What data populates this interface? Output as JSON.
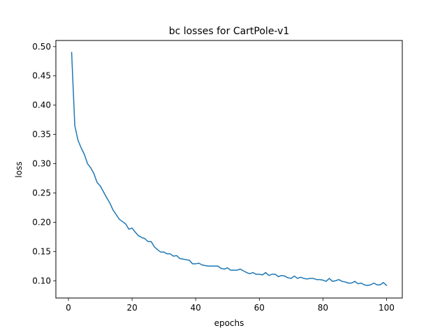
{
  "chart_data": {
    "type": "line",
    "title": "bc losses for CartPole-v1",
    "xlabel": "epochs",
    "ylabel": "loss",
    "xlim": [
      -3.95,
      104.95
    ],
    "ylim": [
      0.0705,
      0.5105
    ],
    "xticks": [
      0,
      20,
      40,
      60,
      80,
      100
    ],
    "yticks": [
      0.1,
      0.15,
      0.2,
      0.25,
      0.3,
      0.35,
      0.4,
      0.45,
      0.5
    ],
    "ytick_labels": [
      "0.10",
      "0.15",
      "0.20",
      "0.25",
      "0.30",
      "0.35",
      "0.40",
      "0.45",
      "0.50"
    ],
    "grid": false,
    "series": [
      {
        "color": "#1f77b4",
        "x": [
          1,
          2,
          3,
          4,
          5,
          6,
          7,
          8,
          9,
          10,
          11,
          12,
          13,
          14,
          15,
          16,
          17,
          18,
          19,
          20,
          21,
          22,
          23,
          24,
          25,
          26,
          27,
          28,
          29,
          30,
          31,
          32,
          33,
          34,
          35,
          36,
          37,
          38,
          39,
          40,
          41,
          42,
          43,
          44,
          45,
          46,
          47,
          48,
          49,
          50,
          51,
          52,
          53,
          54,
          55,
          56,
          57,
          58,
          59,
          60,
          61,
          62,
          63,
          64,
          65,
          66,
          67,
          68,
          69,
          70,
          71,
          72,
          73,
          74,
          75,
          76,
          77,
          78,
          79,
          80,
          81,
          82,
          83,
          84,
          85,
          86,
          87,
          88,
          89,
          90,
          91,
          92,
          93,
          94,
          95,
          96,
          97,
          98,
          99,
          100
        ],
        "values": [
          0.49,
          0.365,
          0.34,
          0.327,
          0.316,
          0.3,
          0.293,
          0.283,
          0.268,
          0.262,
          0.252,
          0.242,
          0.233,
          0.221,
          0.213,
          0.205,
          0.201,
          0.197,
          0.188,
          0.19,
          0.183,
          0.177,
          0.174,
          0.172,
          0.167,
          0.167,
          0.158,
          0.153,
          0.149,
          0.149,
          0.146,
          0.146,
          0.142,
          0.143,
          0.138,
          0.137,
          0.136,
          0.135,
          0.129,
          0.129,
          0.13,
          0.127,
          0.126,
          0.125,
          0.125,
          0.125,
          0.125,
          0.121,
          0.12,
          0.122,
          0.118,
          0.118,
          0.118,
          0.12,
          0.117,
          0.114,
          0.112,
          0.114,
          0.111,
          0.111,
          0.11,
          0.114,
          0.109,
          0.111,
          0.111,
          0.107,
          0.109,
          0.108,
          0.105,
          0.104,
          0.108,
          0.104,
          0.106,
          0.104,
          0.103,
          0.104,
          0.104,
          0.102,
          0.102,
          0.101,
          0.099,
          0.104,
          0.099,
          0.1,
          0.102,
          0.099,
          0.098,
          0.096,
          0.096,
          0.099,
          0.095,
          0.096,
          0.093,
          0.092,
          0.093,
          0.096,
          0.093,
          0.093,
          0.097,
          0.092
        ]
      }
    ]
  }
}
